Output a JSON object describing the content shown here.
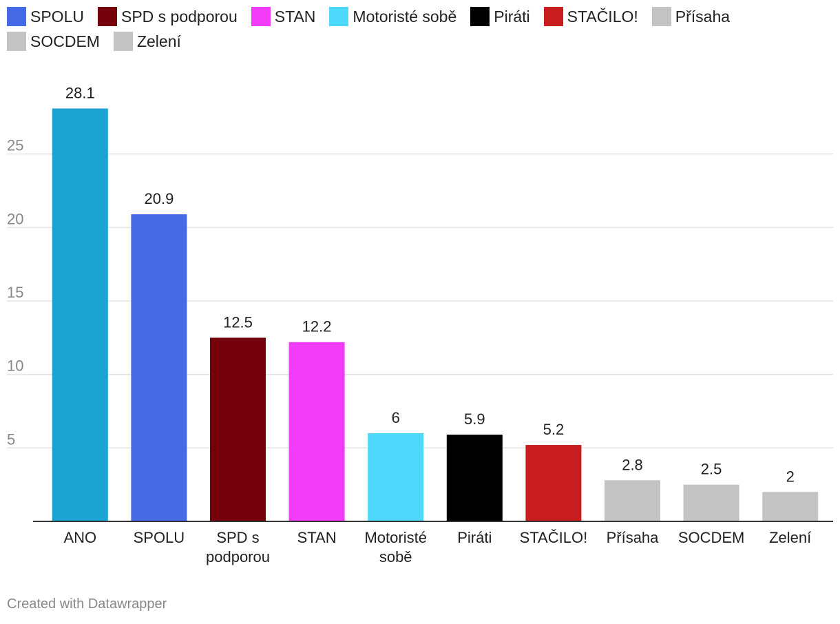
{
  "legend": [
    {
      "label": "SPOLU",
      "color": "#4669e6"
    },
    {
      "label": "SPD s podporou",
      "color": "#74000b"
    },
    {
      "label": "STAN",
      "color": "#f03cf9"
    },
    {
      "label": "Motoristé sobě",
      "color": "#4fd8fc"
    },
    {
      "label": "Piráti",
      "color": "#000000"
    },
    {
      "label": "STAČILO!",
      "color": "#c81e1f"
    },
    {
      "label": "Přísaha",
      "color": "#c3c3c3"
    },
    {
      "label": "SOCDEM",
      "color": "#c3c3c3"
    },
    {
      "label": "Zelení",
      "color": "#c3c3c3"
    }
  ],
  "chart_data": {
    "type": "bar",
    "categories": [
      "ANO",
      "SPOLU",
      "SPD s podporou",
      "STAN",
      "Motoristé sobě",
      "Piráti",
      "STAČILO!",
      "Přísaha",
      "SOCDEM",
      "Zelení"
    ],
    "category_lines": [
      [
        "ANO"
      ],
      [
        "SPOLU"
      ],
      [
        "SPD s",
        "podporou"
      ],
      [
        "STAN"
      ],
      [
        "Motoristé",
        "sobě"
      ],
      [
        "Piráti"
      ],
      [
        "STAČILO!"
      ],
      [
        "Přísaha"
      ],
      [
        "SOCDEM"
      ],
      [
        "Zelení"
      ]
    ],
    "values": [
      28.1,
      20.9,
      12.5,
      12.2,
      6,
      5.9,
      5.2,
      2.8,
      2.5,
      2
    ],
    "value_labels": [
      "28.1",
      "20.9",
      "12.5",
      "12.2",
      "6",
      "5.9",
      "5.2",
      "2.8",
      "2.5",
      "2"
    ],
    "colors": [
      "#1ba3d1",
      "#4669e6",
      "#74000b",
      "#f03cf9",
      "#4fd8fc",
      "#000000",
      "#c81e1f",
      "#c3c3c3",
      "#c3c3c3",
      "#c3c3c3"
    ],
    "yticks": [
      5,
      10,
      15,
      20,
      25
    ],
    "ylim": [
      0,
      30
    ],
    "grid": true,
    "legend_position": "top-left",
    "title": "",
    "xlabel": "",
    "ylabel": ""
  },
  "footer": "Created with Datawrapper"
}
